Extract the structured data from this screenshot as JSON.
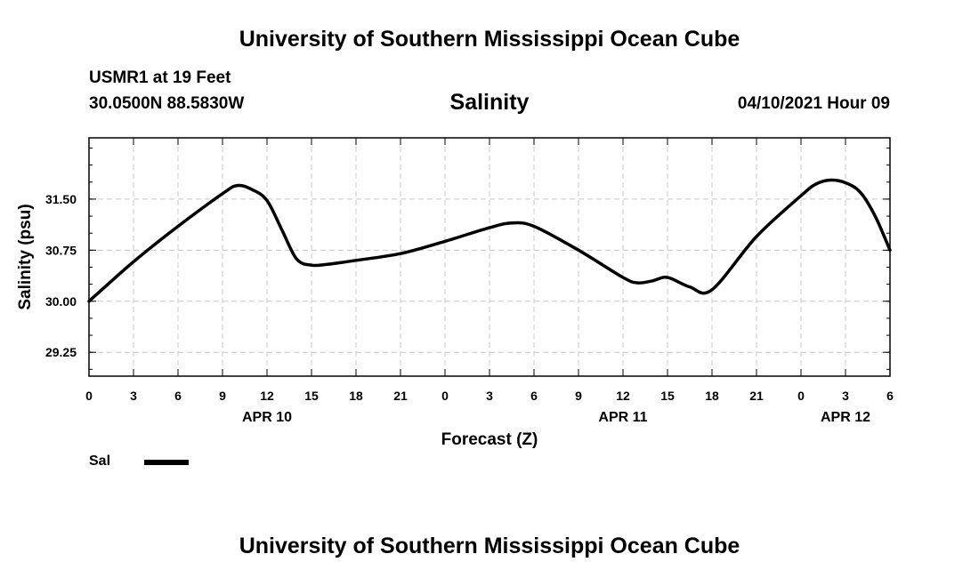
{
  "header": {
    "title": "University of Southern Mississippi Ocean Cube",
    "station": "USMR1 at 19 Feet",
    "coords": "30.0500N  88.5830W",
    "datetime": "04/10/2021 Hour 09"
  },
  "footer": {
    "title": "University of Southern Mississippi Ocean Cube"
  },
  "legend": {
    "label": "Sal"
  },
  "chart_data": {
    "type": "line",
    "title": "Salinity",
    "xlabel": "Forecast (Z)",
    "ylabel": "Salinity (psu)",
    "xlim": [
      0,
      54
    ],
    "ylim": [
      28.9,
      32.4
    ],
    "y_ticks": [
      "29.25",
      "30.00",
      "30.75",
      "31.50"
    ],
    "y_tick_values": [
      29.25,
      30.0,
      30.75,
      31.5
    ],
    "x_ticks": [
      "0",
      "3",
      "6",
      "9",
      "12",
      "15",
      "18",
      "21",
      "0",
      "3",
      "6",
      "9",
      "12",
      "15",
      "18",
      "21",
      "0",
      "3",
      "6"
    ],
    "date_labels": [
      {
        "label": "APR 10",
        "at_hour": 12
      },
      {
        "label": "APR 11",
        "at_hour": 36
      },
      {
        "label": "APR 12",
        "at_hour": 51
      }
    ],
    "grid": true,
    "legend_position": "bottom-left",
    "series": [
      {
        "name": "Sal",
        "color": "#000000",
        "x": [
          0,
          3,
          6,
          9,
          10,
          11,
          12,
          13,
          14,
          15,
          16,
          18,
          21,
          24,
          27,
          28.5,
          30,
          33,
          36,
          37,
          38,
          39,
          40.5,
          42,
          45,
          48,
          49,
          50,
          51,
          52,
          53,
          54
        ],
        "values": [
          30.0,
          30.58,
          31.1,
          31.58,
          31.7,
          31.64,
          31.48,
          31.05,
          30.62,
          30.53,
          30.54,
          30.6,
          30.7,
          30.88,
          31.08,
          31.15,
          31.1,
          30.75,
          30.35,
          30.27,
          30.3,
          30.35,
          30.21,
          30.17,
          30.95,
          31.55,
          31.72,
          31.78,
          31.74,
          31.6,
          31.25,
          30.75
        ]
      }
    ]
  }
}
